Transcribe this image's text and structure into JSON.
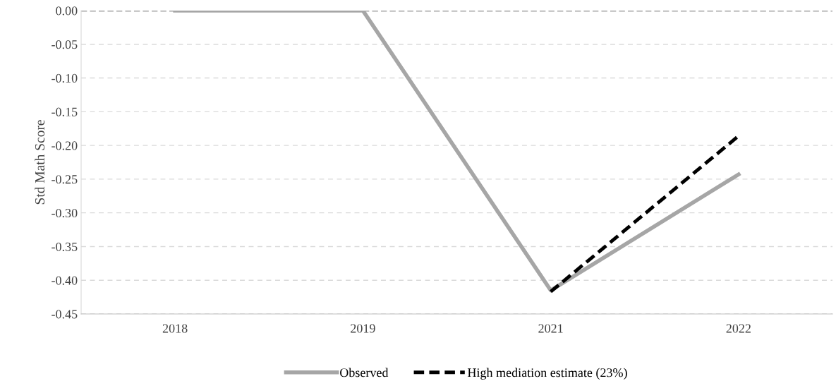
{
  "chart_data": {
    "type": "line",
    "ylabel": "Std Math Score",
    "categories": [
      "2018",
      "2019",
      "2021",
      "2022"
    ],
    "series": [
      {
        "name": "Observed",
        "color": "#a6a6a6",
        "values": [
          0.0,
          0.0,
          -0.415,
          -0.243
        ],
        "line_style": "solid"
      },
      {
        "name": "High mediation estimate (23%)",
        "color": "#000000",
        "values": [
          null,
          null,
          -0.417,
          -0.186
        ],
        "line_style": "dashed"
      }
    ],
    "ylim": [
      -0.45,
      0.0
    ],
    "yticks": [
      {
        "value": -0.45,
        "label": "-0.45"
      },
      {
        "value": -0.4,
        "label": "-0.40"
      },
      {
        "value": -0.35,
        "label": "-0.35"
      },
      {
        "value": -0.3,
        "label": "-0.30"
      },
      {
        "value": -0.25,
        "label": "-0.25"
      },
      {
        "value": -0.2,
        "label": "-0.20"
      },
      {
        "value": -0.15,
        "label": "-0.15"
      },
      {
        "value": -0.1,
        "label": "-0.10"
      },
      {
        "value": -0.05,
        "label": "-0.05"
      },
      {
        "value": 0.0,
        "label": "0.00"
      }
    ],
    "ref_lines": [
      {
        "axis": "y",
        "value": 0.0,
        "color": "#a6a6a6",
        "line_style": "dashed"
      }
    ],
    "grid": "y",
    "legend": "bottom",
    "marker": "none"
  }
}
